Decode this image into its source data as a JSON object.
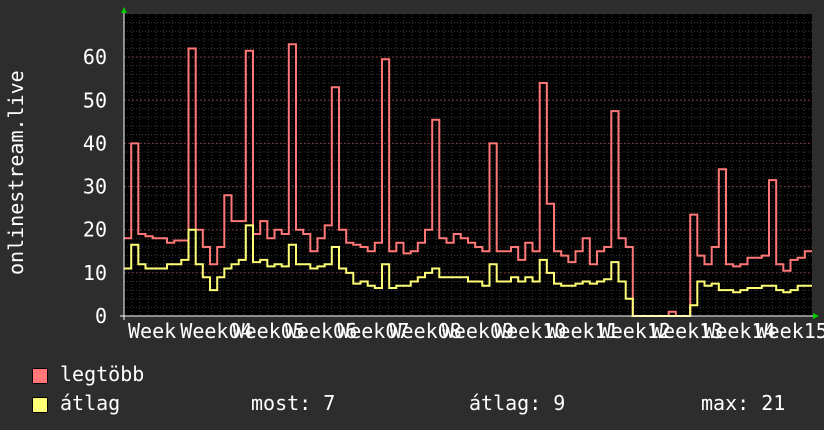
{
  "chart_data": {
    "type": "line",
    "ylabel": "onlinestream.live",
    "ylim": [
      0,
      70
    ],
    "yticks": [
      0,
      10,
      20,
      30,
      40,
      50,
      60
    ],
    "grid": true,
    "x_tick_labels": [
      "Week 04",
      "Week 05",
      "Week 06",
      "Week 07",
      "Week 08",
      "Week 09",
      "Week 10",
      "Week 11",
      "Week 12",
      "Week 13",
      "Week 14",
      "Week 15"
    ],
    "x_tick_labels_as_shown": [
      "Week",
      "Week04",
      "Week05",
      "Week06",
      "Week07",
      "Week08",
      "Week09",
      "Week10",
      "Week11",
      "Week12",
      "Week13",
      "Week14",
      "Week15"
    ],
    "x_range": [
      0,
      96
    ],
    "series": [
      {
        "name": "legtöbb",
        "color": "#ff7777",
        "values": [
          18,
          40,
          19,
          18.5,
          18,
          18,
          17,
          17.5,
          17.5,
          62,
          20,
          16,
          12,
          16,
          28,
          22,
          22,
          61.5,
          19,
          22,
          18,
          20,
          19,
          63,
          20,
          19,
          15,
          18,
          21,
          53,
          20,
          17,
          16.5,
          16,
          15,
          17,
          59.5,
          15,
          17,
          14.5,
          15,
          17,
          20,
          45.5,
          18,
          17,
          19,
          18,
          17,
          16,
          15,
          40,
          15,
          15,
          16,
          13,
          17,
          15,
          54,
          26,
          15,
          14,
          12.5,
          15,
          18,
          12,
          15,
          16,
          47.5,
          18,
          16,
          0,
          0,
          0,
          0,
          0,
          1,
          0,
          0,
          23.5,
          14,
          12,
          16,
          34,
          12,
          11.5,
          12,
          13.5,
          13.5,
          14,
          31.5,
          12,
          10.5,
          13,
          13.5,
          15
        ]
      },
      {
        "name": "átlag",
        "color": "#ffff77",
        "values": [
          11,
          16.5,
          12,
          11,
          11,
          11,
          12,
          12,
          13,
          20,
          12,
          9,
          6,
          9,
          11,
          12,
          13,
          21,
          12.5,
          13,
          11.5,
          12,
          11.5,
          16.5,
          12,
          12,
          11,
          11.5,
          12,
          16,
          11,
          10,
          7.5,
          8,
          7,
          6.5,
          12,
          6.5,
          7,
          7,
          8,
          9,
          10,
          11,
          9,
          9,
          9,
          9,
          8,
          8,
          7,
          12,
          8,
          8,
          9,
          8,
          9,
          8,
          13,
          10,
          7.5,
          7,
          7,
          7.5,
          8,
          7.5,
          8,
          8.5,
          12.5,
          8,
          4,
          0,
          0,
          0,
          0,
          0,
          0,
          0,
          0,
          2.5,
          8,
          7,
          7.5,
          6,
          6,
          5.5,
          6,
          6.5,
          6.5,
          7,
          7,
          6,
          5.5,
          6,
          7,
          7
        ]
      }
    ]
  },
  "legend": {
    "items": [
      {
        "label": "legtöbb",
        "color": "#ff7777"
      },
      {
        "label": "átlag",
        "color": "#ffff77"
      }
    ]
  },
  "stats": {
    "most": "most: 7",
    "atlag": "átlag: 9",
    "max": "max: 21"
  }
}
